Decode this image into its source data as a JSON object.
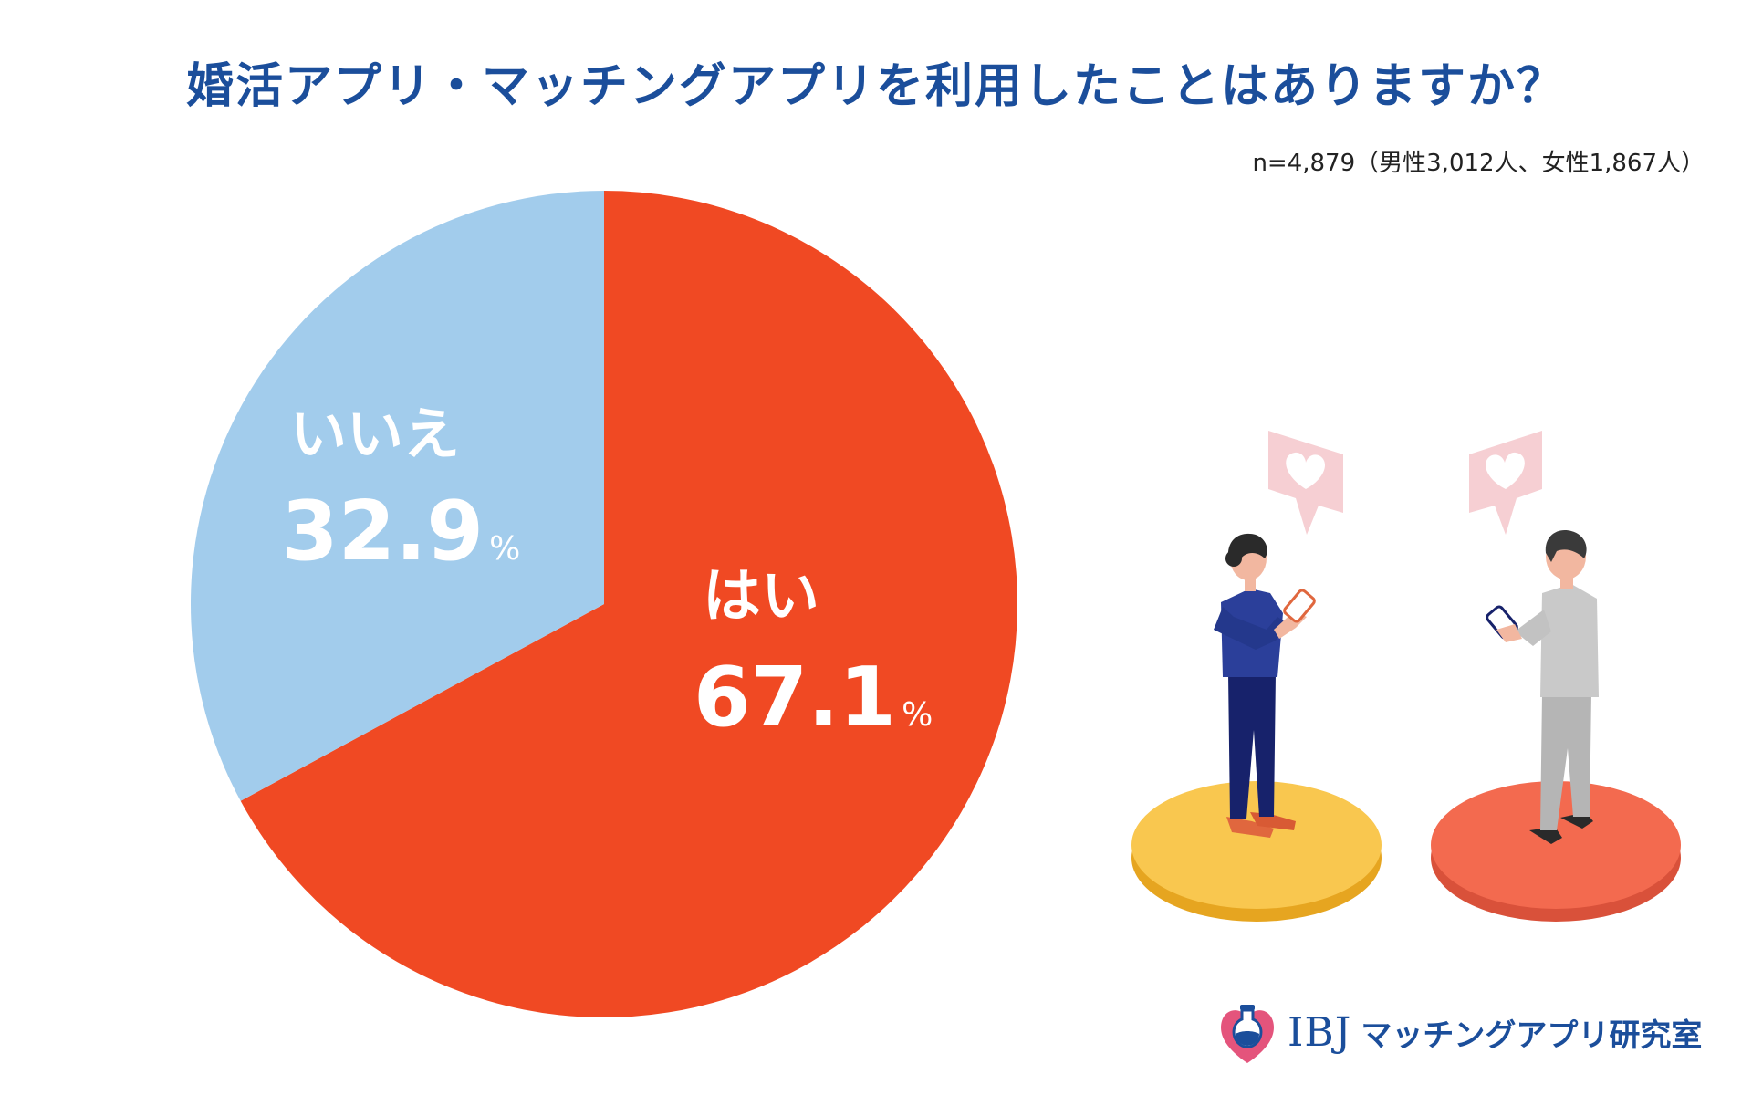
{
  "chart_data": {
    "type": "pie",
    "title": "婚活アプリ・マッチングアプリを利用したことはありますか？",
    "subtitle": "n=4,879（男性3,012人、女性1,867人）",
    "unit": "%",
    "slices": [
      {
        "label": "はい",
        "value": 67.1,
        "value_text": "67.1",
        "color": "#F04923"
      },
      {
        "label": "いいえ",
        "value": 32.9,
        "value_text": "32.9",
        "color": "#A2CCEC"
      }
    ]
  },
  "logo": {
    "ibj": "IBJ",
    "name": "マッチングアプリ研究室",
    "icon": "heart-flask-icon",
    "heart_color": "#E4547C"
  },
  "illustration": {
    "speech_icon": "heart-speech-bubble-icon",
    "woman_icon": "woman-with-phone-icon",
    "man_icon": "man-with-phone-icon",
    "platform_yellow": "#F9C74F",
    "platform_red": "#F36A4F"
  }
}
